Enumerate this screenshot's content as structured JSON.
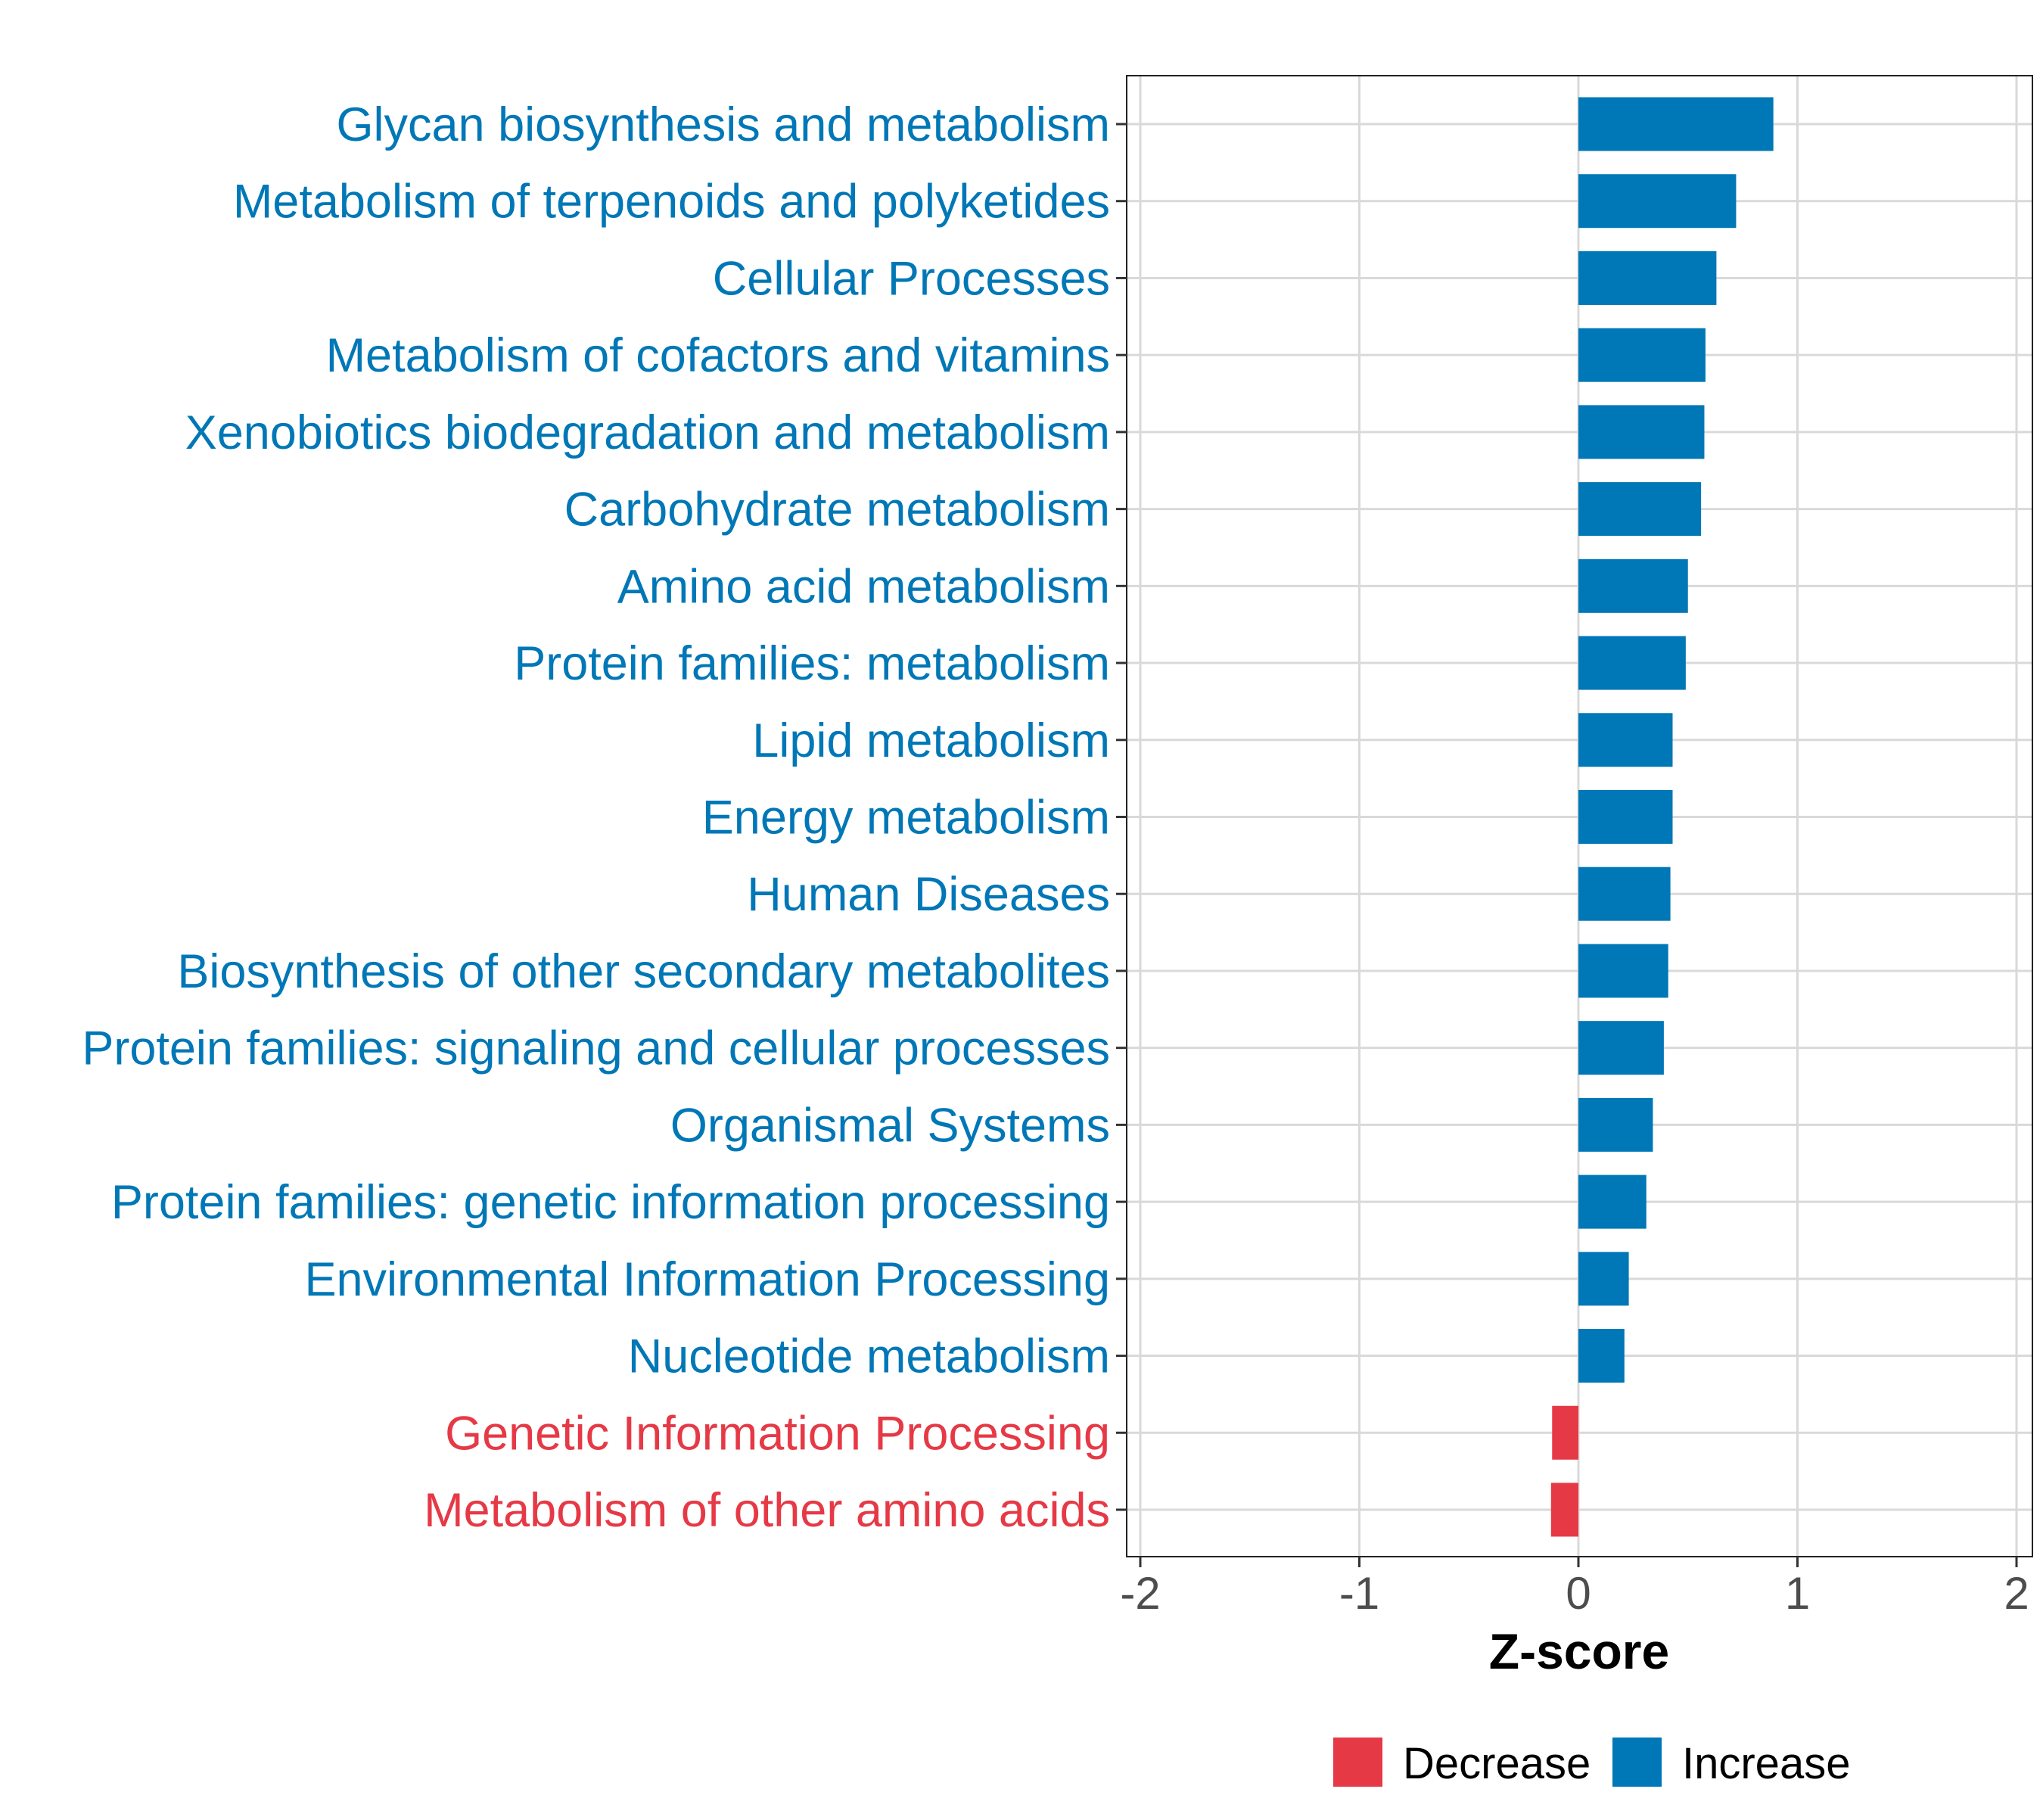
{
  "chart_data": {
    "type": "bar",
    "orientation": "horizontal",
    "title": "",
    "xlabel": "Z-score",
    "ylabel": "",
    "xlim": [
      -2,
      2
    ],
    "xticks": [
      -2,
      -1,
      0,
      1,
      2
    ],
    "xtick_labels": [
      "-2",
      "-1",
      "0",
      "1",
      "2"
    ],
    "grid": true,
    "legend_position": "bottom",
    "colors": {
      "Decrease": "#E63946",
      "Increase": "#0077B6"
    },
    "legend": [
      {
        "key": "Decrease",
        "label": "Decrease"
      },
      {
        "key": "Increase",
        "label": "Increase"
      }
    ],
    "categories": [
      "Glycan biosynthesis and metabolism",
      "Metabolism of terpenoids and polyketides",
      "Cellular Processes",
      "Metabolism of cofactors and vitamins",
      "Xenobiotics biodegradation and metabolism",
      "Carbohydrate metabolism",
      "Amino acid metabolism",
      "Protein families: metabolism",
      "Lipid metabolism",
      "Energy metabolism",
      "Human Diseases",
      "Biosynthesis of other secondary metabolites",
      "Protein families: signaling and cellular processes",
      "Organismal Systems",
      "Protein families: genetic information processing",
      "Environmental Information Processing",
      "Nucleotide metabolism",
      "Genetic Information Processing",
      "Metabolism of other amino acids"
    ],
    "values": [
      0.89,
      0.72,
      0.63,
      0.58,
      0.575,
      0.56,
      0.5,
      0.49,
      0.43,
      0.43,
      0.42,
      0.41,
      0.39,
      0.34,
      0.31,
      0.23,
      0.21,
      -0.12,
      -0.125
    ],
    "direction": [
      "Increase",
      "Increase",
      "Increase",
      "Increase",
      "Increase",
      "Increase",
      "Increase",
      "Increase",
      "Increase",
      "Increase",
      "Increase",
      "Increase",
      "Increase",
      "Increase",
      "Increase",
      "Increase",
      "Increase",
      "Decrease",
      "Decrease"
    ]
  }
}
